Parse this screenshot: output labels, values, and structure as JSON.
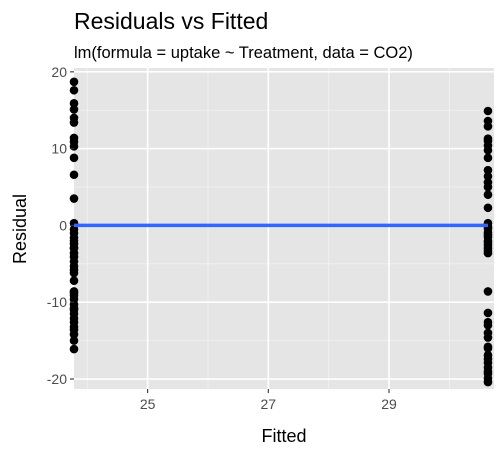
{
  "chart_data": {
    "type": "scatter",
    "title": "Residuals vs Fitted",
    "subtitle": "lm(formula = uptake ~ Treatment, data = CO2)",
    "xlabel": "Fitted",
    "ylabel": "Residual",
    "xlim": [
      23.78,
      30.74
    ],
    "ylim": [
      -21.3,
      20.5
    ],
    "x_ticks": [
      25,
      27,
      29
    ],
    "y_ticks": [
      -20,
      -10,
      0,
      10,
      20
    ],
    "grid": true,
    "panel_background": "#e5e5e5",
    "point_color": "#000000",
    "series": [
      {
        "x": [
          23.78,
          23.78,
          23.78,
          23.78,
          23.78,
          23.78,
          23.78,
          23.78,
          23.78,
          23.78,
          23.78,
          23.78,
          23.78,
          23.78,
          23.78,
          23.78,
          23.78,
          23.78,
          23.78,
          23.78,
          23.78,
          23.78,
          23.78,
          23.78,
          23.78,
          23.78,
          23.78,
          23.78,
          23.78,
          23.78,
          23.78,
          23.78,
          23.78,
          23.78,
          23.78,
          23.78,
          23.78,
          23.78,
          23.78,
          23.78,
          23.78,
          23.78,
          30.64,
          30.64,
          30.64,
          30.64,
          30.64,
          30.64,
          30.64,
          30.64,
          30.64,
          30.64,
          30.64,
          30.64,
          30.64,
          30.64,
          30.64,
          30.64,
          30.64,
          30.64,
          30.64,
          30.64,
          30.64,
          30.64,
          30.64,
          30.64,
          30.64,
          30.64,
          30.64,
          30.64,
          30.64,
          30.64,
          30.64,
          30.64,
          30.64,
          30.64,
          30.64,
          30.64,
          30.64,
          30.64,
          30.64,
          30.64,
          30.64,
          30.64
        ],
        "y": [
          18.7,
          17.6,
          15.9,
          15.1,
          14.0,
          13.4,
          11.4,
          10.9,
          10.3,
          8.8,
          6.6,
          3.5,
          0.3,
          -1.6,
          -2.0,
          -2.9,
          -3.6,
          -4.1,
          -5.3,
          -5.8,
          -8.8,
          -9.6,
          -10.3,
          -10.8,
          -11.5,
          -12.1,
          -13.2,
          -14.2,
          -16.1,
          -1.0,
          -3.0,
          -0.5,
          -9.1,
          -11.0,
          -6.2,
          -4.7,
          -2.4,
          -12.6,
          -13.6,
          -8.6,
          -7.2,
          -15.0,
          14.9,
          13.6,
          12.9,
          11.3,
          10.4,
          9.8,
          8.8,
          6.4,
          5.6,
          2.3,
          0.3,
          -0.1,
          -0.4,
          -0.9,
          -1.5,
          -2.6,
          -3.0,
          -3.6,
          -8.6,
          -11.4,
          -12.6,
          -14.6,
          -16.9,
          -17.4,
          -18.5,
          -19.3,
          -19.9,
          -20.4,
          11.0,
          4.0,
          -1.2,
          -3.3,
          -2.0,
          -14.0,
          -17.9,
          -13.0,
          -16.0,
          -15.8,
          -19.0,
          -2.2,
          7.2,
          5.0
        ]
      }
    ],
    "smooth_line": {
      "color": "#3366ff",
      "x": [
        23.78,
        30.64
      ],
      "y": [
        0,
        0
      ]
    }
  }
}
